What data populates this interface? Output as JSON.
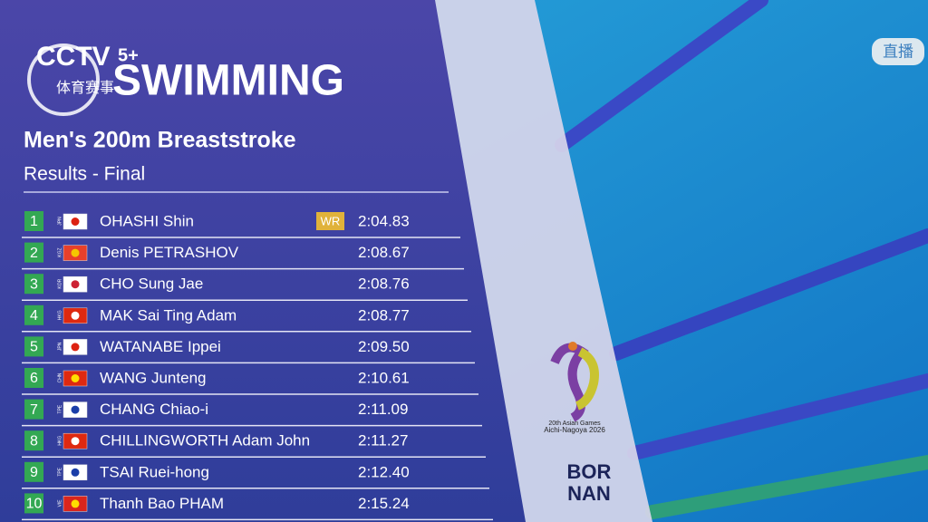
{
  "broadcaster": {
    "channel": "CCTV",
    "channel_suffix": "5+",
    "channel_name": "体育赛事"
  },
  "live_badge": "直播",
  "header": {
    "sport": "SWIMMING",
    "event": "Men's 200m Breaststroke",
    "stage": "Results - Final"
  },
  "results": [
    {
      "rank": "1",
      "country": "JPN",
      "name": "OHASHI Shin",
      "record": "WR",
      "time": "2:04.83"
    },
    {
      "rank": "2",
      "country": "KGZ",
      "name": "Denis PETRASHOV",
      "time": "2:08.67"
    },
    {
      "rank": "3",
      "country": "KOR",
      "name": "CHO Sung Jae",
      "time": "2:08.76"
    },
    {
      "rank": "4",
      "country": "HKG",
      "name": "MAK Sai Ting Adam",
      "time": "2:08.77"
    },
    {
      "rank": "5",
      "country": "JPN",
      "name": "WATANABE Ippei",
      "time": "2:09.50"
    },
    {
      "rank": "6",
      "country": "CHN",
      "name": "WANG Junteng",
      "time": "2:10.61"
    },
    {
      "rank": "7",
      "country": "TPE",
      "name": "CHANG Chiao-i",
      "time": "2:11.09"
    },
    {
      "rank": "8",
      "country": "HKG",
      "name": "CHILLINGWORTH Adam John",
      "time": "2:11.27"
    },
    {
      "rank": "9",
      "country": "TPE",
      "name": "TSAI Ruei-hong",
      "time": "2:12.40"
    },
    {
      "rank": "10",
      "country": "VIE",
      "name": "Thanh Bao PHAM",
      "time": "2:15.24"
    }
  ],
  "games_logo": {
    "edition": "20th Asian Games",
    "host": "Aichi-Nagoya 2026"
  },
  "mascot_logo": {
    "line1": "BOR",
    "line2": "NAN"
  }
}
